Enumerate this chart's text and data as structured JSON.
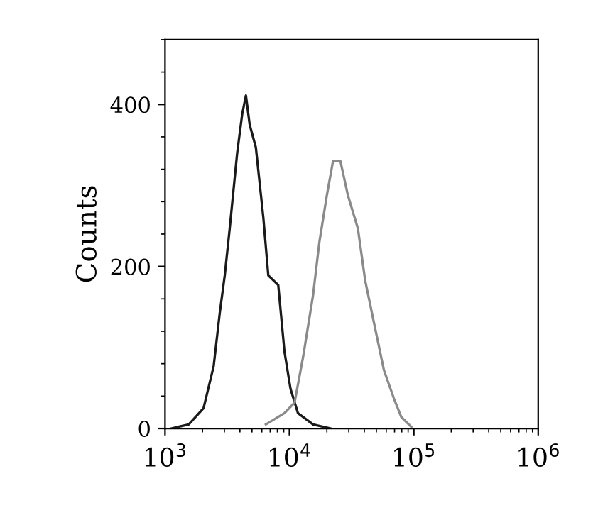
{
  "chart_data": {
    "type": "line",
    "ylabel": "Counts",
    "log": "x",
    "xlim": [
      1000,
      1000000
    ],
    "xticks": [
      {
        "value": 1000,
        "label": "10$^{3}$"
      },
      {
        "value": 10000,
        "label": "10$^{4}$"
      },
      {
        "value": 100000,
        "label": "10$^{5}$"
      },
      {
        "value": 1000000,
        "label": "10$^{6}$"
      }
    ],
    "ylim": [
      0,
      480
    ],
    "yticks": [
      0,
      200,
      400
    ],
    "grid": false,
    "legend": false,
    "marker": "none",
    "line_style": "solid",
    "series": [
      {
        "color": "#1a1a1a",
        "x": [
          1120,
          1550,
          2040,
          2460,
          2750,
          3020,
          3310,
          3800,
          4170,
          4470,
          4790,
          5370,
          6170,
          6760,
          8130,
          9120,
          10200,
          11700,
          15500,
          21400
        ],
        "values": [
          0,
          5,
          25,
          77,
          142,
          189,
          247,
          340,
          388,
          411,
          375,
          347,
          260,
          189,
          177,
          95,
          49,
          19,
          5,
          0
        ]
      },
      {
        "color": "#8a8a8a",
        "x": [
          6460,
          9120,
          11000,
          12900,
          15500,
          17400,
          20000,
          22400,
          25700,
          29500,
          35500,
          40700,
          47900,
          57500,
          69200,
          79400,
          95500
        ],
        "values": [
          5,
          19,
          32,
          89,
          165,
          230,
          288,
          330,
          330,
          288,
          247,
          182,
          130,
          72,
          37,
          14,
          2
        ]
      }
    ]
  }
}
